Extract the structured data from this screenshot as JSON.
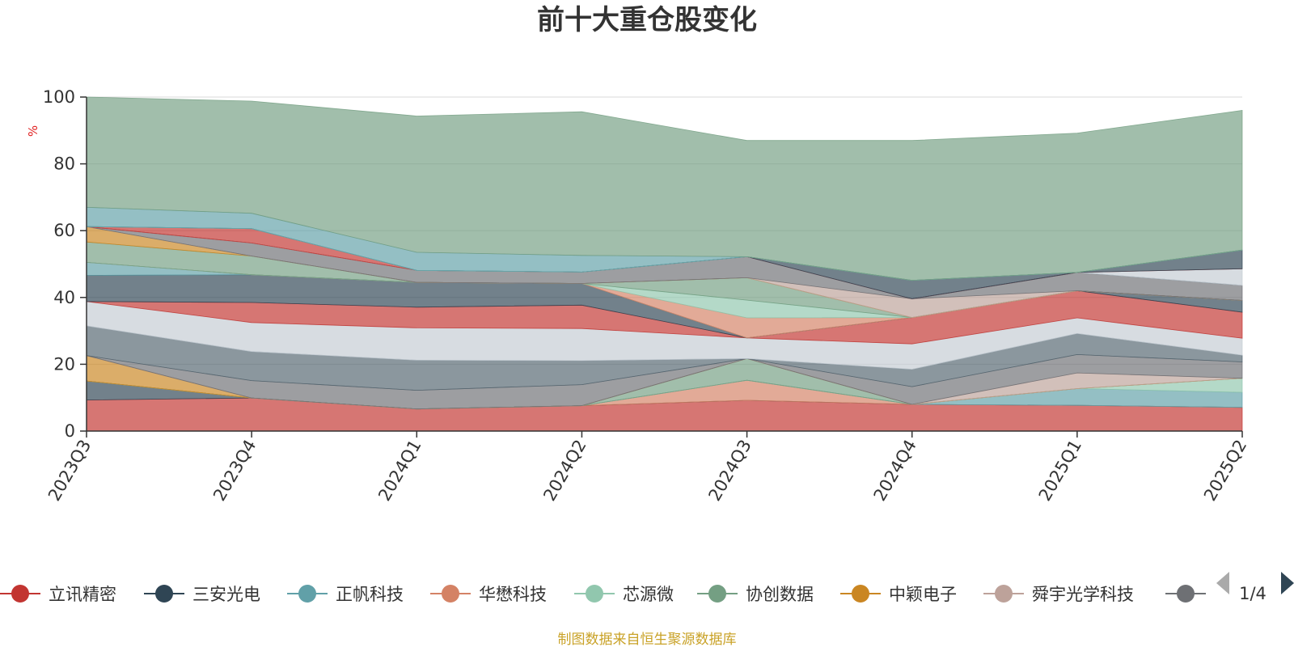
{
  "title": "前十大重仓股变化",
  "unit": "%",
  "source_note": "制图数据来自恒生聚源数据库",
  "legend_page": "1/4",
  "colors": {
    "gridline": "#d9d9d9",
    "axis": "#333333"
  },
  "chart_data": {
    "type": "area",
    "stacked": true,
    "x": [
      "2023Q3",
      "2023Q4",
      "2024Q1",
      "2024Q2",
      "2024Q3",
      "2024Q4",
      "2025Q1",
      "2025Q2"
    ],
    "ylim": [
      0,
      100
    ],
    "yticks": [
      0,
      20,
      40,
      60,
      80,
      100
    ],
    "ylabel": "%",
    "legend_position": "bottom",
    "grid": true,
    "series": [
      {
        "name": "立讯精密",
        "color": "#c23531",
        "values": [
          9.3,
          9.9,
          6.6,
          7.6,
          9.2,
          8.0,
          7.7,
          7.1
        ]
      },
      {
        "color": "#2f4554",
        "values": [
          5.7,
          0,
          0,
          0,
          0,
          0,
          0,
          0
        ]
      },
      {
        "color": "#d48265",
        "values": [
          0,
          0,
          0,
          0,
          6.0,
          0,
          0,
          0
        ]
      },
      {
        "color": "#61a0a8",
        "values": [
          0,
          0,
          0,
          0,
          0,
          0,
          5.0,
          4.5
        ]
      },
      {
        "color": "#91c7ae",
        "values": [
          0,
          0,
          0,
          0,
          0,
          0,
          0,
          4.2
        ]
      },
      {
        "color": "#749f83",
        "values": [
          0,
          0,
          0,
          0,
          6.5,
          0,
          0,
          0
        ]
      },
      {
        "color": "#ca8622",
        "values": [
          7.6,
          0,
          0,
          0,
          0,
          0,
          0,
          0
        ]
      },
      {
        "color": "#bda29a",
        "values": [
          0,
          0,
          0,
          0,
          0,
          0,
          4.7,
          0
        ]
      },
      {
        "color": "#6e7074",
        "values": [
          0,
          5.2,
          5.6,
          6.3,
          0,
          5.3,
          5.5,
          4.9
        ]
      },
      {
        "color": "#546570",
        "values": [
          8.9,
          8.7,
          9.0,
          7.2,
          0,
          5.2,
          6.3,
          2.0
        ]
      },
      {
        "color": "#c4ccd3",
        "values": [
          7.3,
          8.7,
          9.7,
          9.6,
          6.2,
          7.6,
          4.7,
          5.1
        ]
      },
      {
        "color": "#c23531",
        "values": [
          0,
          6.0,
          6.2,
          7.0,
          0,
          7.9,
          8.1,
          7.8
        ]
      },
      {
        "color": "#2f4554",
        "values": [
          7.8,
          8.3,
          7.4,
          6.5,
          0,
          0,
          0,
          3.5
        ]
      },
      {
        "color": "#61a0a8",
        "values": [
          3.9,
          0,
          0,
          0,
          0,
          0,
          0,
          0
        ]
      },
      {
        "color": "#d48265",
        "values": [
          0,
          0,
          0,
          0,
          6.0,
          0,
          0,
          0
        ]
      },
      {
        "color": "#91c7ae",
        "values": [
          0,
          0,
          0,
          0,
          5.3,
          0,
          0,
          0
        ]
      },
      {
        "color": "#749f83",
        "values": [
          6.1,
          5.6,
          0,
          0,
          6.7,
          0,
          0,
          0
        ]
      },
      {
        "color": "#ca8622",
        "values": [
          4.6,
          0,
          0,
          0,
          0,
          0,
          0,
          0
        ]
      },
      {
        "color": "#bda29a",
        "values": [
          0,
          0,
          0,
          0,
          0,
          5.6,
          0,
          0
        ]
      },
      {
        "color": "#6e7074",
        "values": [
          0,
          3.9,
          3.6,
          3.4,
          6.3,
          0,
          5.5,
          4.5
        ]
      },
      {
        "color": "#546570",
        "values": [
          0,
          0,
          0,
          0,
          0,
          0,
          0,
          0
        ]
      },
      {
        "color": "#c4ccd3",
        "values": [
          0,
          0,
          0,
          0,
          0,
          0,
          0,
          5.0
        ]
      },
      {
        "color": "#c23531",
        "values": [
          0,
          4.3,
          0,
          0,
          0,
          0,
          0,
          0
        ]
      },
      {
        "color": "#2f4554",
        "values": [
          0,
          0,
          0,
          0,
          0,
          5.5,
          0,
          5.6
        ]
      },
      {
        "color": "#61a0a8",
        "values": [
          0,
          0,
          0,
          0,
          0,
          0,
          0,
          0
        ]
      },
      {
        "color": "#91c7ae",
        "values": [
          0,
          0,
          0,
          0,
          0,
          0,
          0,
          0
        ]
      },
      {
        "color": "#61a0a8",
        "values": [
          5.8,
          4.6,
          5.4,
          5.0,
          0,
          0,
          0,
          0
        ]
      },
      {
        "color": "#749f83",
        "values": [
          33.0,
          33.6,
          40.8,
          43.0,
          34.8,
          41.9,
          41.7,
          41.8
        ]
      }
    ]
  },
  "legend": [
    {
      "label": "立讯精密",
      "color": "#c23531"
    },
    {
      "label": "三安光电",
      "color": "#2f4554"
    },
    {
      "label": "正帆科技",
      "color": "#61a0a8"
    },
    {
      "label": "华懋科技",
      "color": "#d48265"
    },
    {
      "label": "芯源微",
      "color": "#91c7ae"
    },
    {
      "label": "协创数据",
      "color": "#749f83"
    },
    {
      "label": "中颖电子",
      "color": "#ca8622"
    },
    {
      "label": "舜宇光学科技",
      "color": "#bda29a"
    },
    {
      "label": "",
      "color": "#6e7074"
    }
  ]
}
